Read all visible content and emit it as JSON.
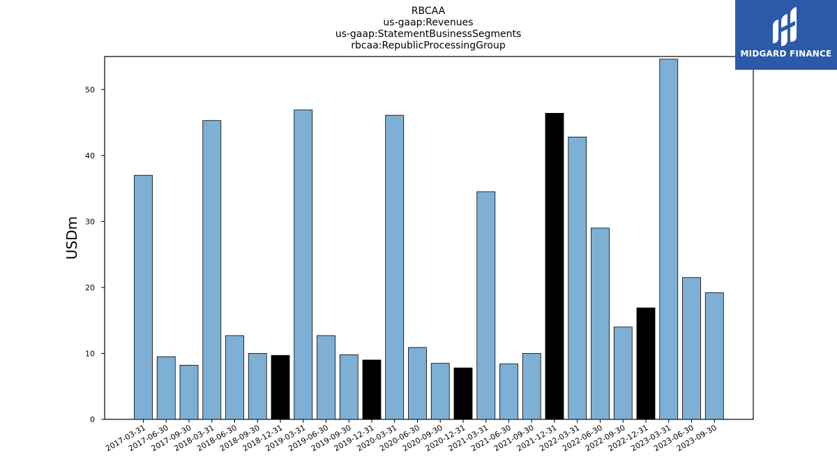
{
  "logo": {
    "text": "MIDGARD FINANCE",
    "background": "#2b5aa8"
  },
  "chart_data": {
    "type": "bar",
    "title_lines": [
      "RBCAA",
      "us-gaap:Revenues",
      "us-gaap:StatementBusinessSegments",
      "rbcaa:RepublicProcessingGroup"
    ],
    "xlabel": "",
    "ylabel": "USDm",
    "ylim": [
      0,
      55
    ],
    "yticks": [
      0,
      10,
      20,
      30,
      40,
      50
    ],
    "grid": false,
    "categories": [
      "2017-03-31",
      "2017-06-30",
      "2017-09-30",
      "2018-03-31",
      "2018-06-30",
      "2018-09-30",
      "2018-12-31",
      "2019-03-31",
      "2019-06-30",
      "2019-09-30",
      "2019-12-31",
      "2020-03-31",
      "2020-06-30",
      "2020-09-30",
      "2020-12-31",
      "2021-03-31",
      "2021-06-30",
      "2021-09-30",
      "2021-12-31",
      "2022-03-31",
      "2022-06-30",
      "2022-09-30",
      "2022-12-31",
      "2023-03-31",
      "2023-06-30",
      "2023-09-30"
    ],
    "values": [
      37.0,
      9.5,
      8.2,
      45.3,
      12.7,
      10.0,
      9.7,
      46.9,
      12.7,
      9.8,
      9.0,
      46.1,
      10.9,
      8.5,
      7.8,
      34.5,
      8.4,
      10.0,
      46.4,
      42.8,
      29.0,
      14.0,
      16.9,
      54.6,
      21.5,
      19.2
    ],
    "highlighted": [
      false,
      false,
      false,
      false,
      false,
      false,
      true,
      false,
      false,
      false,
      true,
      false,
      false,
      false,
      true,
      false,
      false,
      false,
      true,
      false,
      false,
      false,
      true,
      false,
      false,
      false
    ],
    "colors": {
      "bar": "#7eafd4",
      "highlight": "#000000",
      "edge": "#000000"
    }
  }
}
